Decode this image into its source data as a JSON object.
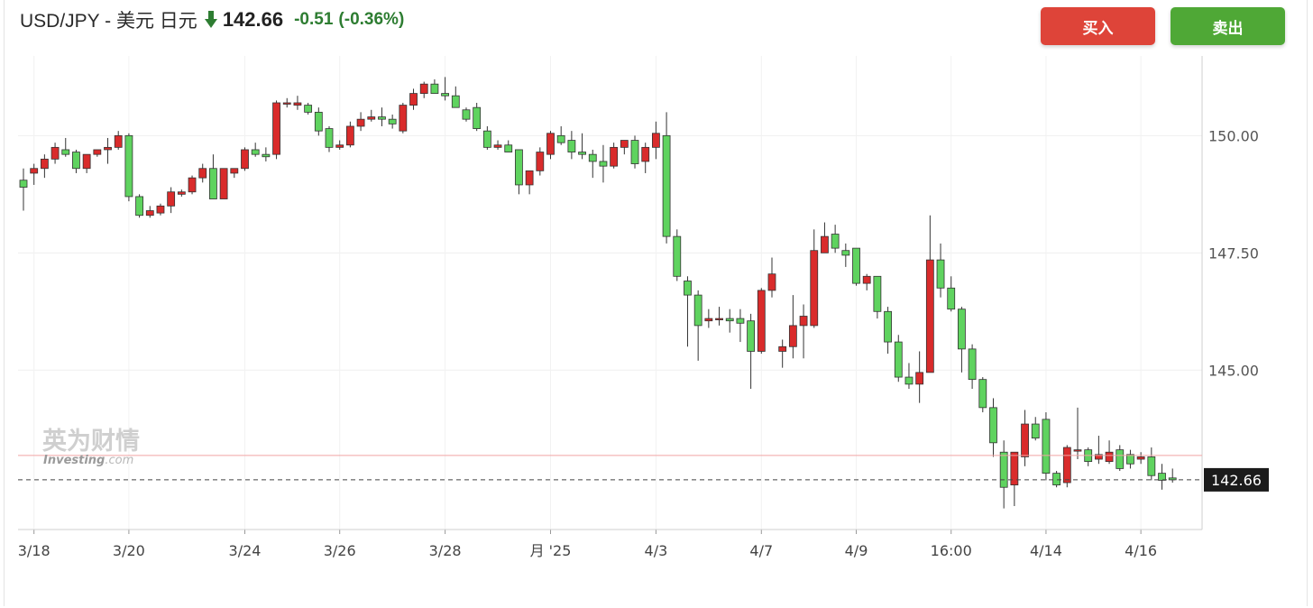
{
  "header": {
    "pair": "USD/JPY - 美元 日元",
    "price": "142.66",
    "change": "-0.51",
    "change_pct": "(-0.36%)",
    "direction": "down",
    "change_color": "#2e7d32"
  },
  "buttons": {
    "buy": "买入",
    "sell": "卖出",
    "buy_color": "#de4439",
    "sell_color": "#4fa836"
  },
  "watermark": {
    "cn": "英为财情",
    "en": "Investing",
    "suffix": ".com"
  },
  "chart_data": {
    "type": "candlestick",
    "ylim": [
      141.6,
      151.7
    ],
    "y_ticks": [
      150.0,
      147.5,
      145.0
    ],
    "y_tick_labels": [
      "150.00",
      "147.50",
      "145.00"
    ],
    "last_price": 142.66,
    "last_price_label": "142.66",
    "reference_line": 143.18,
    "up_color": "#5fd35f",
    "down_color": "#d92b2b",
    "x_labels": [
      {
        "label": "3/18",
        "i": 1
      },
      {
        "label": "3/20",
        "i": 10
      },
      {
        "label": "3/24",
        "i": 21
      },
      {
        "label": "3/26",
        "i": 30
      },
      {
        "label": "3/28",
        "i": 40
      },
      {
        "label": "月 '25",
        "i": 50
      },
      {
        "label": "4/3",
        "i": 60
      },
      {
        "label": "4/7",
        "i": 70
      },
      {
        "label": "4/9",
        "i": 79
      },
      {
        "label": "16:00",
        "i": 88
      },
      {
        "label": "4/14",
        "i": 97
      },
      {
        "label": "4/16",
        "i": 106
      }
    ],
    "candles": [
      [
        149.05,
        149.3,
        148.4,
        148.9
      ],
      [
        149.2,
        149.4,
        148.95,
        149.3
      ],
      [
        149.3,
        149.6,
        149.1,
        149.5
      ],
      [
        149.5,
        149.85,
        149.4,
        149.75
      ],
      [
        149.7,
        149.95,
        149.55,
        149.6
      ],
      [
        149.65,
        149.7,
        149.2,
        149.3
      ],
      [
        149.3,
        149.6,
        149.2,
        149.6
      ],
      [
        149.6,
        149.7,
        149.55,
        149.7
      ],
      [
        149.7,
        149.95,
        149.4,
        149.75
      ],
      [
        149.75,
        150.1,
        149.7,
        150.0
      ],
      [
        150.0,
        150.05,
        148.6,
        148.7
      ],
      [
        148.7,
        148.75,
        148.25,
        148.3
      ],
      [
        148.3,
        148.5,
        148.25,
        148.4
      ],
      [
        148.35,
        148.55,
        148.3,
        148.5
      ],
      [
        148.5,
        148.9,
        148.35,
        148.8
      ],
      [
        148.75,
        148.85,
        148.7,
        148.8
      ],
      [
        148.8,
        149.15,
        148.75,
        149.1
      ],
      [
        149.1,
        149.4,
        149.0,
        149.3
      ],
      [
        149.3,
        149.6,
        148.65,
        148.65
      ],
      [
        148.65,
        149.3,
        148.65,
        149.3
      ],
      [
        149.2,
        149.3,
        149.1,
        149.3
      ],
      [
        149.3,
        149.75,
        149.25,
        149.7
      ],
      [
        149.7,
        149.85,
        149.55,
        149.6
      ],
      [
        149.6,
        149.75,
        149.45,
        149.55
      ],
      [
        149.6,
        150.75,
        149.5,
        150.7
      ],
      [
        150.7,
        150.8,
        150.6,
        150.7
      ],
      [
        150.65,
        150.85,
        150.55,
        150.7
      ],
      [
        150.65,
        150.7,
        150.45,
        150.5
      ],
      [
        150.5,
        150.6,
        150.0,
        150.1
      ],
      [
        150.15,
        150.2,
        149.65,
        149.75
      ],
      [
        149.75,
        149.9,
        149.7,
        149.8
      ],
      [
        149.8,
        150.3,
        149.75,
        150.2
      ],
      [
        150.2,
        150.5,
        150.1,
        150.35
      ],
      [
        150.35,
        150.55,
        150.3,
        150.4
      ],
      [
        150.4,
        150.6,
        150.2,
        150.35
      ],
      [
        150.35,
        150.45,
        150.15,
        150.25
      ],
      [
        150.1,
        150.7,
        150.05,
        150.65
      ],
      [
        150.65,
        151.0,
        150.55,
        150.9
      ],
      [
        150.9,
        151.15,
        150.8,
        151.1
      ],
      [
        151.1,
        151.2,
        150.9,
        150.9
      ],
      [
        150.9,
        151.25,
        150.75,
        150.85
      ],
      [
        150.85,
        151.05,
        150.7,
        150.6
      ],
      [
        150.55,
        150.6,
        150.3,
        150.35
      ],
      [
        150.6,
        150.7,
        150.1,
        150.15
      ],
      [
        150.1,
        150.2,
        149.7,
        149.75
      ],
      [
        149.75,
        149.9,
        149.7,
        149.8
      ],
      [
        149.8,
        149.9,
        149.65,
        149.65
      ],
      [
        149.7,
        149.7,
        148.75,
        148.95
      ],
      [
        148.95,
        149.2,
        148.75,
        149.25
      ],
      [
        149.25,
        149.75,
        149.15,
        149.65
      ],
      [
        149.6,
        150.1,
        149.5,
        150.05
      ],
      [
        150.0,
        150.2,
        149.8,
        149.85
      ],
      [
        149.9,
        150.1,
        149.5,
        149.65
      ],
      [
        149.65,
        150.05,
        149.5,
        149.6
      ],
      [
        149.6,
        149.7,
        149.1,
        149.45
      ],
      [
        149.45,
        149.8,
        149.0,
        149.35
      ],
      [
        149.35,
        149.85,
        149.3,
        149.75
      ],
      [
        149.75,
        149.9,
        149.6,
        149.9
      ],
      [
        149.9,
        150.0,
        149.3,
        149.4
      ],
      [
        149.45,
        149.85,
        149.2,
        149.75
      ],
      [
        149.75,
        150.3,
        149.5,
        150.05
      ],
      [
        150.0,
        150.5,
        147.7,
        147.85
      ],
      [
        147.85,
        148.0,
        146.9,
        147.0
      ],
      [
        146.9,
        147.0,
        145.5,
        146.6
      ],
      [
        146.6,
        146.7,
        145.2,
        145.95
      ],
      [
        146.05,
        146.3,
        145.9,
        146.1
      ],
      [
        146.1,
        146.35,
        145.95,
        146.1
      ],
      [
        146.1,
        146.3,
        145.8,
        146.05
      ],
      [
        146.1,
        146.3,
        145.6,
        146.0
      ],
      [
        146.05,
        146.2,
        144.6,
        145.4
      ],
      [
        145.4,
        146.75,
        145.35,
        146.7
      ],
      [
        146.7,
        147.4,
        146.55,
        147.05
      ],
      [
        145.4,
        145.65,
        145.05,
        145.5
      ],
      [
        145.5,
        146.6,
        145.25,
        145.95
      ],
      [
        145.95,
        146.4,
        145.25,
        146.15
      ],
      [
        145.95,
        148.0,
        145.9,
        147.55
      ],
      [
        147.5,
        148.15,
        147.5,
        147.85
      ],
      [
        147.9,
        148.1,
        147.5,
        147.6
      ],
      [
        147.55,
        147.7,
        147.2,
        147.45
      ],
      [
        147.6,
        147.6,
        146.8,
        146.85
      ],
      [
        146.85,
        147.05,
        146.7,
        147.0
      ],
      [
        147.0,
        147.0,
        146.1,
        146.25
      ],
      [
        146.25,
        146.35,
        145.35,
        145.6
      ],
      [
        145.6,
        145.75,
        144.75,
        144.85
      ],
      [
        144.85,
        145.15,
        144.6,
        144.7
      ],
      [
        144.7,
        145.4,
        144.3,
        144.95
      ],
      [
        144.95,
        148.3,
        144.95,
        147.35
      ],
      [
        147.35,
        147.7,
        146.55,
        146.75
      ],
      [
        146.75,
        147.0,
        146.25,
        146.3
      ],
      [
        146.3,
        146.35,
        144.95,
        145.45
      ],
      [
        145.45,
        145.55,
        144.6,
        144.8
      ],
      [
        144.8,
        144.85,
        144.1,
        144.2
      ],
      [
        144.2,
        144.4,
        143.15,
        143.45
      ],
      [
        143.25,
        143.5,
        142.05,
        142.5
      ],
      [
        142.55,
        143.25,
        142.1,
        143.25
      ],
      [
        143.15,
        144.15,
        142.95,
        143.85
      ],
      [
        143.85,
        144.0,
        143.5,
        143.55
      ],
      [
        143.95,
        144.1,
        142.65,
        142.8
      ],
      [
        142.8,
        142.85,
        142.5,
        142.55
      ],
      [
        142.6,
        143.4,
        142.5,
        143.35
      ],
      [
        143.3,
        144.2,
        143.1,
        143.3
      ],
      [
        143.3,
        143.35,
        142.95,
        143.05
      ],
      [
        143.1,
        143.6,
        143.0,
        143.2
      ],
      [
        143.05,
        143.5,
        143.0,
        143.25
      ],
      [
        143.3,
        143.4,
        142.85,
        142.9
      ],
      [
        143.2,
        143.3,
        142.9,
        143.0
      ],
      [
        143.1,
        143.25,
        143.0,
        143.15
      ],
      [
        143.15,
        143.35,
        142.65,
        142.75
      ],
      [
        142.8,
        143.0,
        142.45,
        142.65
      ],
      [
        142.7,
        142.9,
        142.6,
        142.66
      ]
    ]
  }
}
